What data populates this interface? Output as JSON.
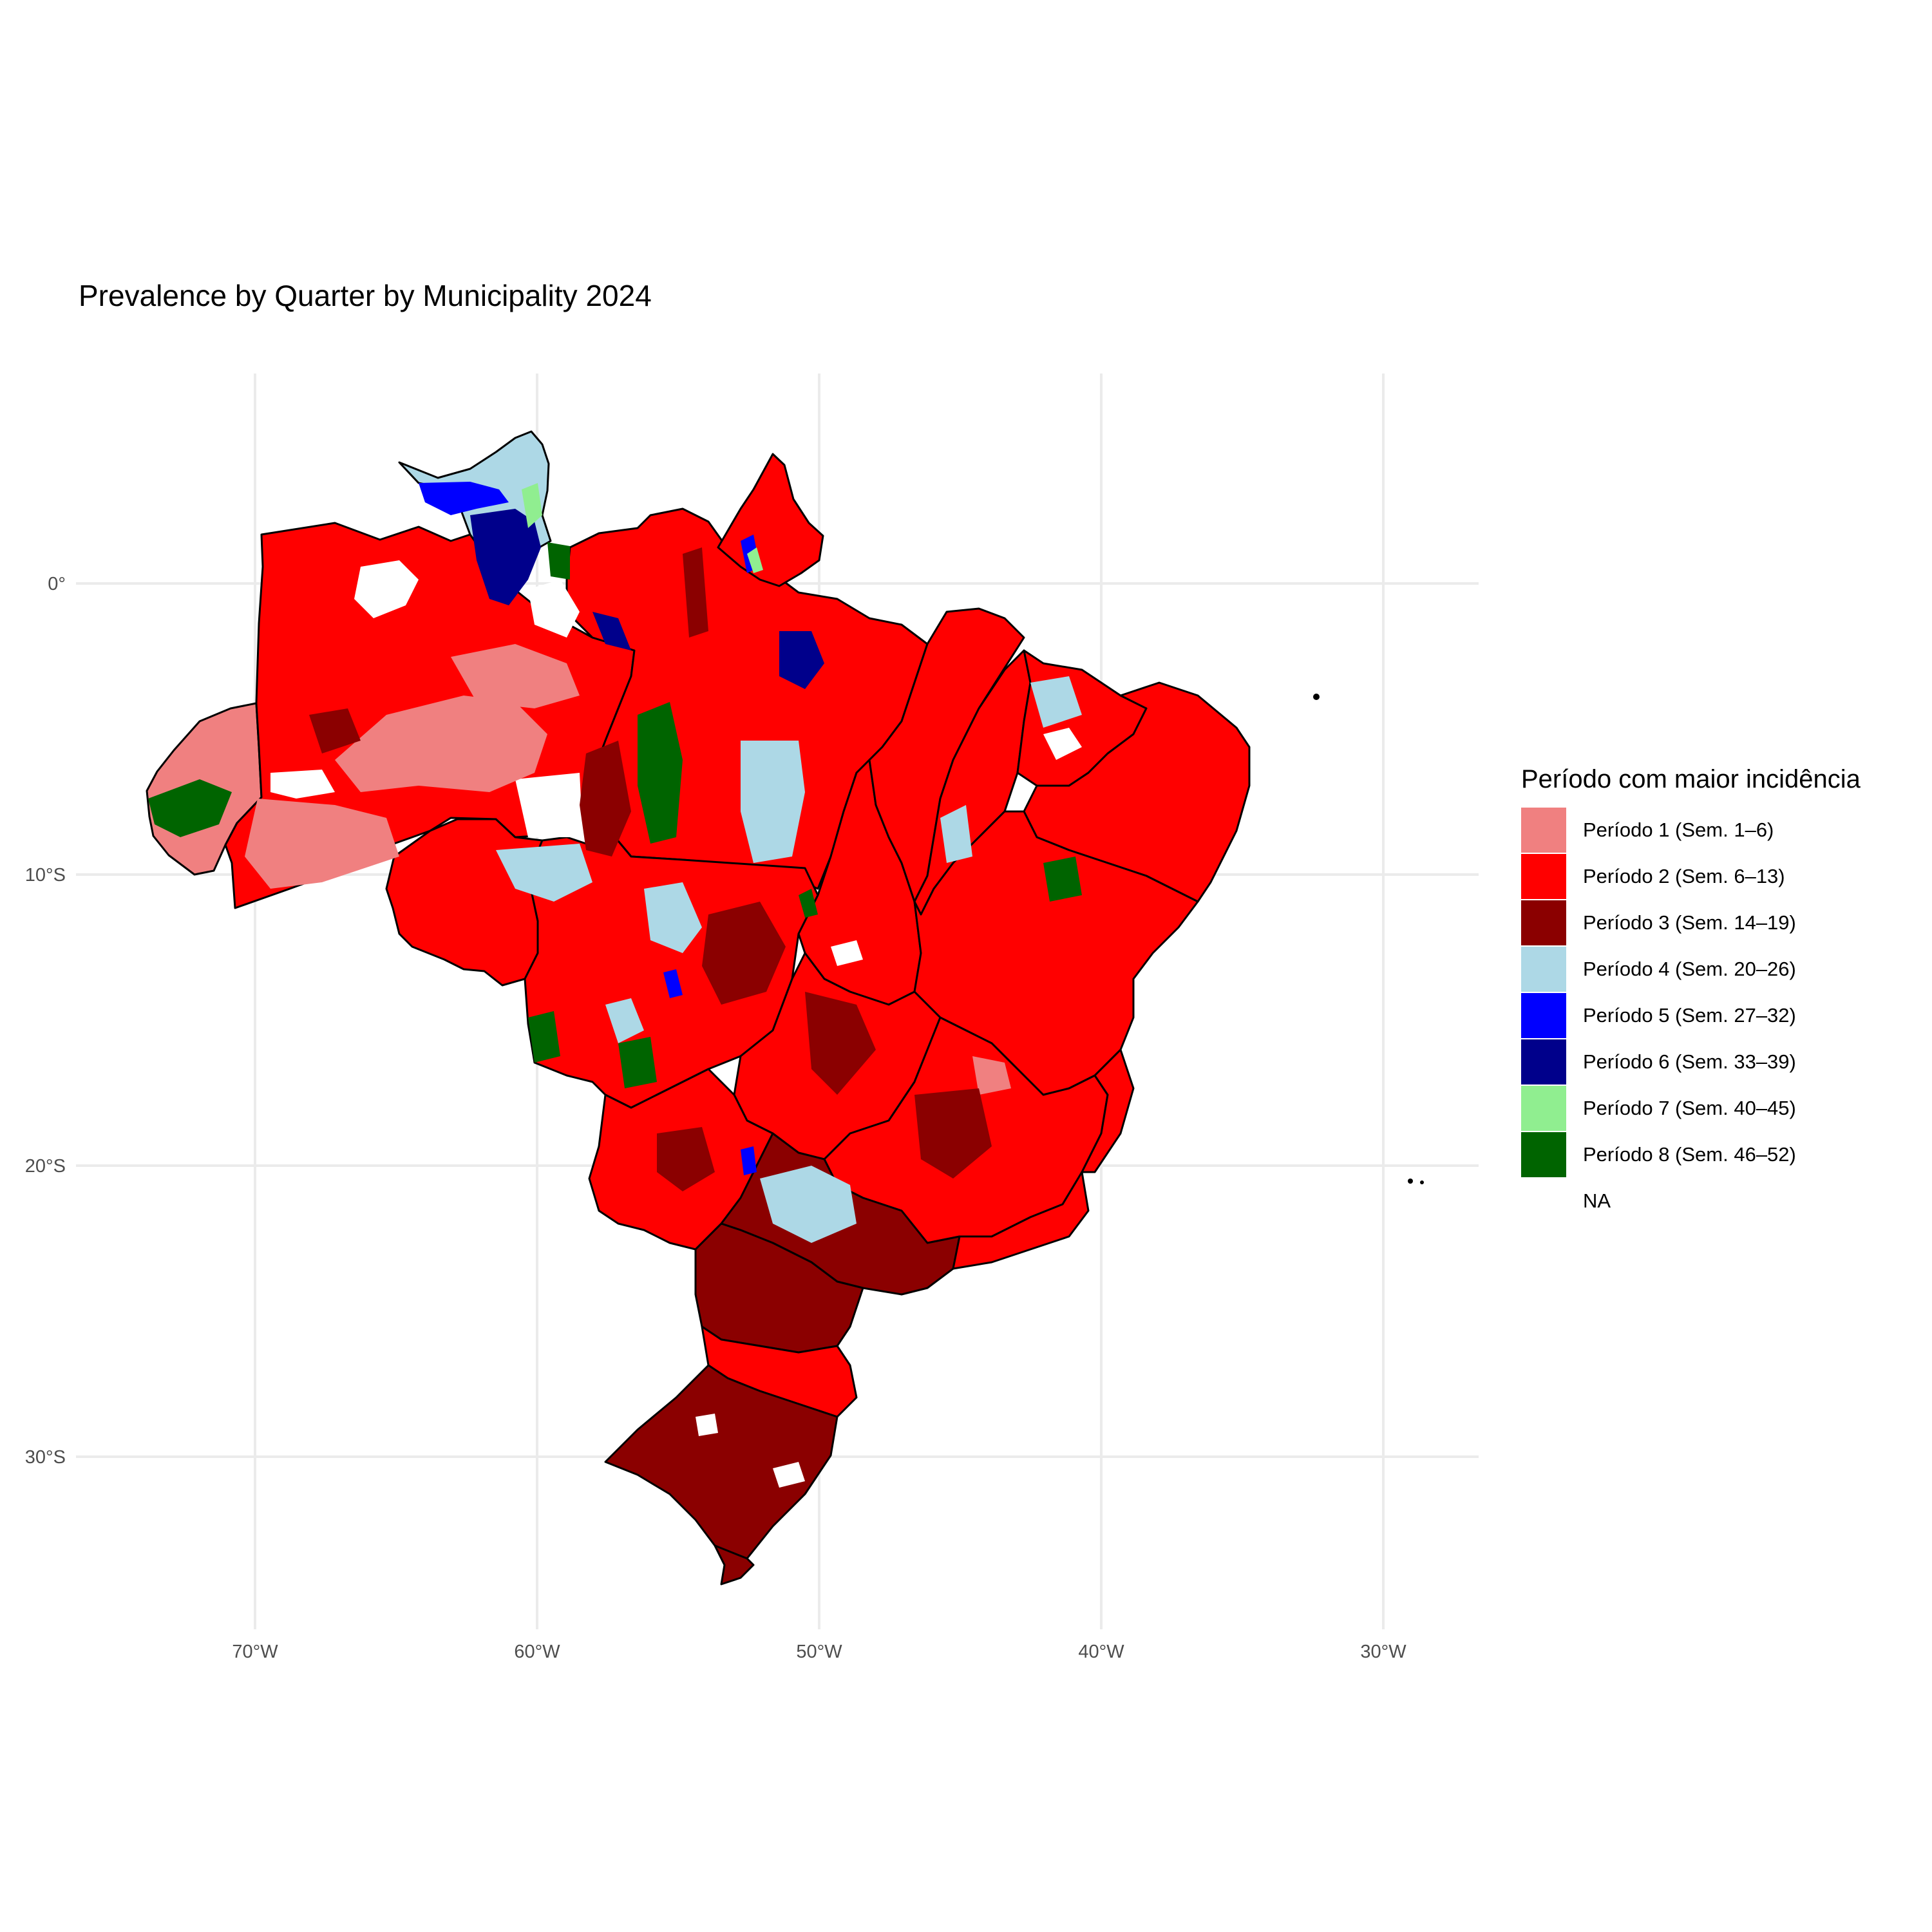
{
  "title": "Prevalence by Quarter by Municipality 2024",
  "x_axis": {
    "ticks": [
      {
        "lon": -70,
        "label": "70°W"
      },
      {
        "lon": -60,
        "label": "60°W"
      },
      {
        "lon": -50,
        "label": "50°W"
      },
      {
        "lon": -40,
        "label": "40°W"
      },
      {
        "lon": -30,
        "label": "30°W"
      }
    ]
  },
  "y_axis": {
    "ticks": [
      {
        "lat": 0,
        "label": "0°"
      },
      {
        "lat": -10,
        "label": "10°S"
      },
      {
        "lat": -20,
        "label": "20°S"
      },
      {
        "lat": -30,
        "label": "30°S"
      }
    ]
  },
  "legend": {
    "title": "Período com maior incidência",
    "items": [
      {
        "label": "Período 1 (Sem. 1–6)",
        "color": "#f08080"
      },
      {
        "label": "Período 2 (Sem. 6–13)",
        "color": "#ff0000"
      },
      {
        "label": "Período 3 (Sem. 14–19)",
        "color": "#8b0000"
      },
      {
        "label": "Período 4 (Sem. 20–26)",
        "color": "#add8e6"
      },
      {
        "label": "Período 5 (Sem. 27–32)",
        "color": "#0000ff"
      },
      {
        "label": "Período 6 (Sem. 33–39)",
        "color": "#00008b"
      },
      {
        "label": "Período 7 (Sem. 40–45)",
        "color": "#90ee90"
      },
      {
        "label": "Período 8 (Sem. 46–52)",
        "color": "#006400"
      },
      {
        "label": "NA",
        "color": "#ffffff"
      }
    ]
  },
  "map": {
    "region": "Brazil",
    "units": "municipalities",
    "year": 2024,
    "states": [
      {
        "id": "AC",
        "fill": "#f08080"
      },
      {
        "id": "AM",
        "fill": "#ff0000"
      },
      {
        "id": "RR",
        "fill": "#add8e6"
      },
      {
        "id": "PA",
        "fill": "#ff0000"
      },
      {
        "id": "AP",
        "fill": "#ff0000"
      },
      {
        "id": "RO",
        "fill": "#ff0000"
      },
      {
        "id": "MT",
        "fill": "#ff0000"
      },
      {
        "id": "TO",
        "fill": "#ff0000"
      },
      {
        "id": "MA",
        "fill": "#ff0000"
      },
      {
        "id": "PI",
        "fill": "#ff0000"
      },
      {
        "id": "CE",
        "fill": "#ff0000"
      },
      {
        "id": "NE",
        "fill": "#ff0000"
      },
      {
        "id": "BA",
        "fill": "#ff0000"
      },
      {
        "id": "GO",
        "fill": "#ff0000"
      },
      {
        "id": "MS",
        "fill": "#ff0000"
      },
      {
        "id": "MG",
        "fill": "#ff0000"
      },
      {
        "id": "ES",
        "fill": "#ff0000"
      },
      {
        "id": "SP",
        "fill": "#8b0000"
      },
      {
        "id": "RJ",
        "fill": "#ff0000"
      },
      {
        "id": "PR",
        "fill": "#8b0000"
      },
      {
        "id": "SC",
        "fill": "#ff0000"
      },
      {
        "id": "RS",
        "fill": "#8b0000"
      }
    ]
  }
}
